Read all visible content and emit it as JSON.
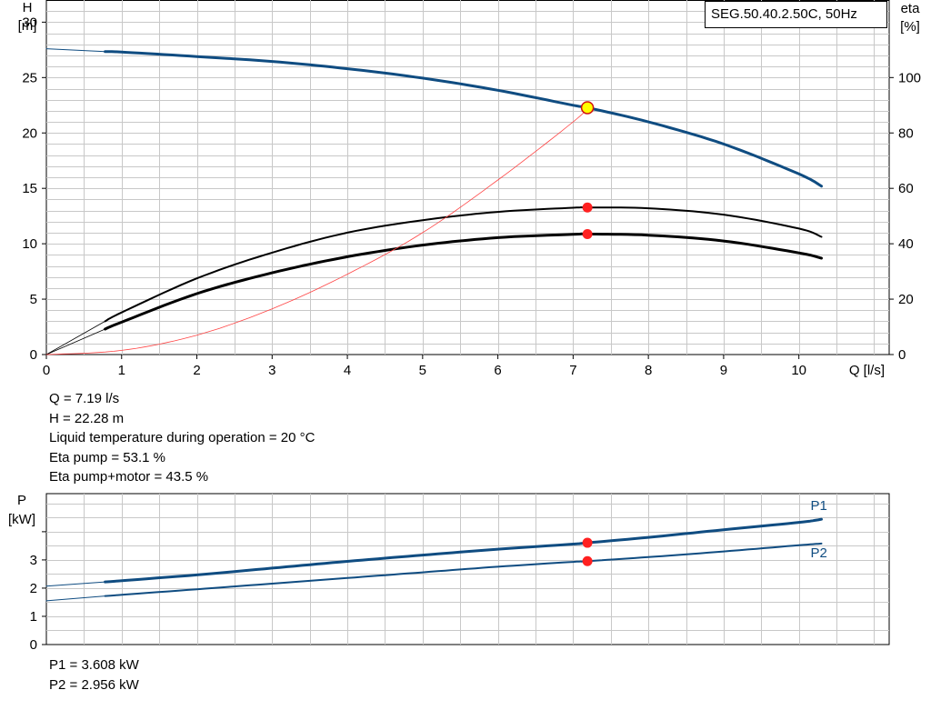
{
  "pump_label": "SEG.50.40.2.50C, 50Hz",
  "colors": {
    "head_curve": "#0f4c81",
    "power_curve": "#0f4c81",
    "eta_curve": "#000000",
    "npsh_curve": "#ff4444",
    "duty_point": "#ff2020",
    "duty_point_head": "#ffff00",
    "grid": "#c8c8c8"
  },
  "operating_point": {
    "lines": [
      "Q = 7.19 l/s",
      "H = 22.28 m",
      "Liquid temperature during operation = 20 °C",
      "Eta pump = 53.1 %",
      "Eta pump+motor = 43.5 %"
    ]
  },
  "power_point": {
    "lines": [
      "P1 = 3.608 kW",
      "P2 = 2.956 kW"
    ]
  },
  "chart_data": [
    {
      "type": "line",
      "xlabel": "Q [l/s]",
      "ylabel_left": [
        "H",
        "[m]"
      ],
      "ylabel_right": [
        "eta",
        "[%]"
      ],
      "xlim": [
        0,
        11.2
      ],
      "ylim_left": [
        0,
        32
      ],
      "ylim_right": [
        0,
        128
      ],
      "x_ticks": [
        0,
        1,
        2,
        3,
        4,
        5,
        6,
        7,
        8,
        9,
        10
      ],
      "y_ticks_left": [
        0,
        5,
        10,
        15,
        20,
        25,
        30
      ],
      "y_ticks_right": [
        0,
        20,
        40,
        60,
        80,
        100
      ],
      "grid": true,
      "series": [
        {
          "axis": "left",
          "role": "head-extrapolated",
          "x": [
            0,
            0.78
          ],
          "y": [
            27.6,
            27.35
          ]
        },
        {
          "axis": "left",
          "role": "head",
          "x": [
            0.78,
            1,
            2,
            3,
            4,
            5,
            6,
            7,
            7.19,
            8,
            9,
            10,
            10.3
          ],
          "y": [
            27.35,
            27.3,
            26.9,
            26.45,
            25.8,
            24.95,
            23.85,
            22.5,
            22.28,
            21.0,
            19.0,
            16.3,
            15.2
          ]
        },
        {
          "axis": "right",
          "role": "eta-pump-extrapolated",
          "x": [
            0,
            0.78
          ],
          "y": [
            0,
            12
          ]
        },
        {
          "axis": "right",
          "role": "eta-pump",
          "x": [
            0.78,
            1,
            2,
            3,
            4,
            5,
            6,
            7,
            7.19,
            8,
            9,
            10,
            10.3
          ],
          "y": [
            12,
            15.2,
            27.5,
            36.8,
            44,
            48.5,
            51.5,
            53,
            53.1,
            52.8,
            50.5,
            45.5,
            42.5
          ]
        },
        {
          "axis": "right",
          "role": "eta-total-extrapolated",
          "x": [
            0,
            0.78
          ],
          "y": [
            0,
            9.2
          ]
        },
        {
          "axis": "right",
          "role": "eta-total",
          "x": [
            0.78,
            1,
            2,
            3,
            4,
            5,
            6,
            7,
            7.19,
            8,
            9,
            10,
            10.3
          ],
          "y": [
            9.2,
            11.7,
            22,
            29.5,
            35.3,
            39.5,
            42.2,
            43.4,
            43.5,
            43.1,
            41,
            36.7,
            34.8
          ]
        },
        {
          "axis": "right",
          "role": "npsh-thin",
          "x": [
            0,
            1,
            2,
            3,
            4,
            5,
            6,
            7,
            7.19
          ],
          "y": [
            0,
            1.5,
            7,
            16.5,
            29,
            44,
            63,
            84,
            89.1
          ]
        }
      ],
      "duty_points": [
        {
          "axis": "left",
          "x": 7.19,
          "y": 22.28,
          "style": "head"
        },
        {
          "axis": "right",
          "x": 7.19,
          "y": 53.1,
          "style": "normal"
        },
        {
          "axis": "right",
          "x": 7.19,
          "y": 43.5,
          "style": "normal"
        }
      ]
    },
    {
      "type": "line",
      "xlabel": "",
      "ylabel_left": [
        "P",
        "[kW]"
      ],
      "xlim": [
        0,
        11.2
      ],
      "ylim": [
        0,
        5.35
      ],
      "y_ticks": [
        0,
        1,
        2,
        3
      ],
      "y_minor_ticks": [
        4
      ],
      "grid": true,
      "series": [
        {
          "name": "P1",
          "role": "p1-extrapolated",
          "x": [
            0,
            0.78
          ],
          "y": [
            2.07,
            2.22
          ]
        },
        {
          "name": "P1",
          "role": "p1",
          "x": [
            0.78,
            2,
            3,
            4,
            5,
            6,
            7,
            7.19,
            8,
            9,
            10,
            10.3
          ],
          "y": [
            2.22,
            2.47,
            2.71,
            2.95,
            3.17,
            3.38,
            3.56,
            3.608,
            3.8,
            4.07,
            4.33,
            4.44
          ]
        },
        {
          "name": "P2",
          "role": "p2-extrapolated",
          "x": [
            0,
            0.78
          ],
          "y": [
            1.55,
            1.72
          ]
        },
        {
          "name": "P2",
          "role": "p2",
          "x": [
            0.78,
            2,
            3,
            4,
            5,
            6,
            7,
            7.19,
            8,
            9,
            10,
            10.3
          ],
          "y": [
            1.72,
            1.96,
            2.16,
            2.36,
            2.56,
            2.76,
            2.93,
            2.956,
            3.1,
            3.3,
            3.52,
            3.58
          ]
        }
      ],
      "series_labels": [
        "P1",
        "P2"
      ],
      "duty_points": [
        {
          "x": 7.19,
          "y": 3.608
        },
        {
          "x": 7.19,
          "y": 2.956
        }
      ]
    }
  ]
}
